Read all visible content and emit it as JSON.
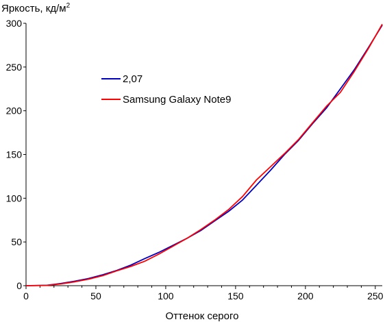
{
  "chart_data": {
    "type": "line",
    "ylabel": "Яркость, кд/м",
    "ylabel_sup": "2",
    "xlabel": "Оттенок серого",
    "xlim": [
      0,
      255
    ],
    "ylim": [
      0,
      300
    ],
    "xticks": [
      0,
      50,
      100,
      150,
      200,
      250
    ],
    "yticks": [
      0,
      50,
      100,
      150,
      200,
      250,
      300
    ],
    "grid": false,
    "legend_position": "upper-left",
    "series": [
      {
        "name": "2,07",
        "color": "#0000c0",
        "x": [
          0,
          15,
          25,
          35,
          45,
          55,
          65,
          75,
          85,
          95,
          105,
          115,
          125,
          135,
          145,
          155,
          165,
          175,
          185,
          195,
          205,
          215,
          225,
          235,
          245,
          255
        ],
        "y": [
          0,
          0.5,
          2.5,
          5.2,
          8.3,
          12.5,
          17.5,
          23.5,
          31,
          38,
          46,
          54,
          63,
          74,
          85,
          98,
          115,
          132,
          150,
          166,
          185,
          203,
          225,
          247,
          272,
          298
        ]
      },
      {
        "name": "Samsung Galaxy Note9",
        "color": "#ff0000",
        "x": [
          0,
          15,
          25,
          35,
          45,
          55,
          65,
          75,
          85,
          95,
          105,
          115,
          125,
          135,
          145,
          155,
          165,
          175,
          185,
          195,
          205,
          215,
          225,
          235,
          245,
          255
        ],
        "y": [
          0,
          0.3,
          2,
          4.5,
          7.5,
          11.5,
          17,
          22,
          28,
          36,
          45,
          54,
          64,
          75,
          87,
          102,
          121,
          136,
          151,
          167,
          186,
          205,
          221,
          245,
          271,
          299
        ]
      }
    ]
  }
}
